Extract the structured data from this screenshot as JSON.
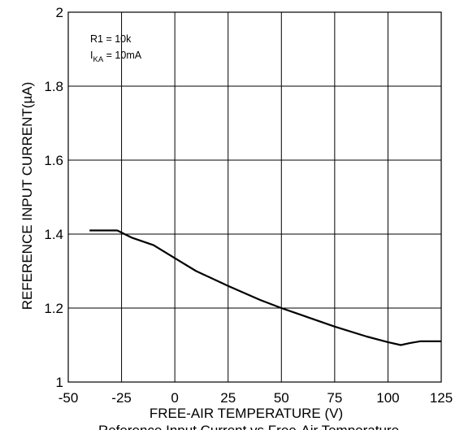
{
  "chart_data": {
    "type": "line",
    "title": "",
    "xlabel": "FREE-AIR TEMPERATURE (V)",
    "ylabel": "REFERENCE INPUT CURRENT(µA)",
    "xlim": [
      -50,
      125
    ],
    "ylim": [
      1,
      2
    ],
    "xticks": [
      "-50",
      "-25",
      "0",
      "25",
      "50",
      "75",
      "100",
      "125"
    ],
    "xtick_values": [
      -50,
      -25,
      0,
      25,
      50,
      75,
      100,
      125
    ],
    "yticks": [
      "1",
      "1.2",
      "1.4",
      "1.6",
      "1.8",
      "2"
    ],
    "ytick_values": [
      1,
      1.2,
      1.4,
      1.6,
      1.8,
      2
    ],
    "grid": true,
    "annotation": {
      "line1": "R1 = 10k",
      "line2_prefix": "I",
      "line2_sub": "KA",
      "line2_suffix": " = 10mA"
    },
    "caption": "Reference Input Current vs Free-Air Temperature",
    "series": [
      {
        "x": [
          -40,
          -27,
          -20,
          -10,
          0,
          10,
          25,
          40,
          50,
          60,
          75,
          90,
          100,
          106,
          110,
          115,
          125
        ],
        "y": [
          1.41,
          1.41,
          1.39,
          1.37,
          1.335,
          1.3,
          1.26,
          1.222,
          1.2,
          1.18,
          1.15,
          1.123,
          1.108,
          1.1,
          1.105,
          1.11,
          1.11
        ]
      }
    ],
    "line_color": "#000000",
    "grid_color": "#000000"
  }
}
